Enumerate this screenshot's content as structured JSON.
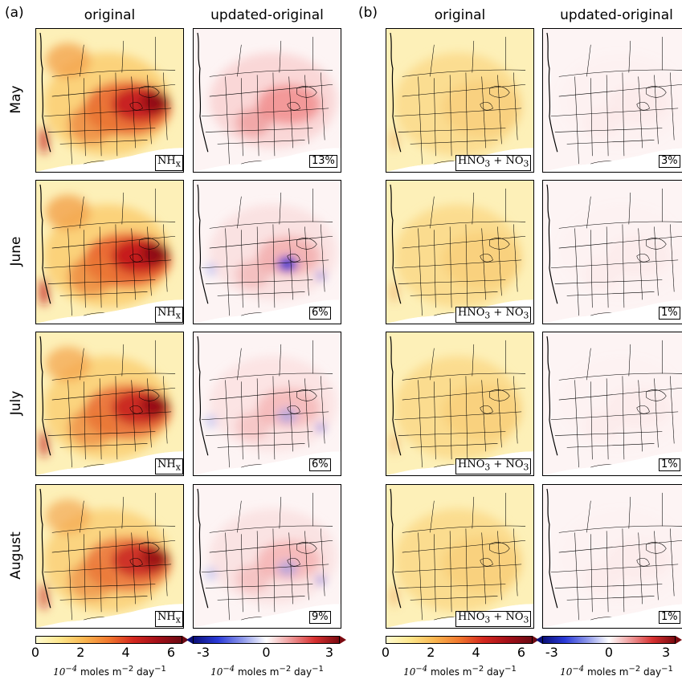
{
  "chart_data": [
    {
      "type": "heatmap",
      "panel": "(a)",
      "species": "NH",
      "species_sub": "x",
      "column_titles": [
        "original",
        "updated-original"
      ],
      "rows": [
        "May",
        "June",
        "July",
        "August"
      ],
      "percent_changes": [
        "13%",
        "6%",
        "6%",
        "9%"
      ],
      "original_colorbar": {
        "ticks": [
          "0",
          "2",
          "4",
          "6"
        ],
        "range": [
          0,
          6.5
        ],
        "colormap": "yellow-orange-red",
        "extend": "max"
      },
      "difference_colorbar": {
        "ticks": [
          "-3",
          "0",
          "3"
        ],
        "range": [
          -3.5,
          3.5
        ],
        "colormap": "blue-white-red",
        "extend": "both"
      },
      "units": {
        "base": "10",
        "exp": "−4",
        "text": "moles m",
        "exp2": "−2",
        "text2": "day",
        "exp3": "−1"
      },
      "intensity": {
        "original": [
          0.95,
          1.0,
          0.88,
          0.8
        ],
        "difference": [
          0.55,
          0.35,
          0.3,
          0.32
        ]
      },
      "negative_anomalies": [
        false,
        true,
        true,
        true
      ]
    },
    {
      "type": "heatmap",
      "panel": "(b)",
      "species": "HNO",
      "species_sub": "3",
      "species2": "NO",
      "species2_sub": "3",
      "column_titles": [
        "original",
        "updated-original"
      ],
      "rows": [
        "May",
        "June",
        "July",
        "August"
      ],
      "percent_changes": [
        "3%",
        "1%",
        "1%",
        "1%"
      ],
      "original_colorbar": {
        "ticks": [
          "0",
          "2",
          "4",
          "6"
        ],
        "range": [
          0,
          6.5
        ],
        "colormap": "yellow-orange-red",
        "extend": "max"
      },
      "difference_colorbar": {
        "ticks": [
          "-3",
          "0",
          "3"
        ],
        "range": [
          -3.5,
          3.5
        ],
        "colormap": "blue-white-red",
        "extend": "both"
      },
      "units": {
        "base": "10",
        "exp": "−4",
        "text": "moles m",
        "exp2": "−2",
        "text2": "day",
        "exp3": "−1"
      },
      "intensity": {
        "original": [
          0.28,
          0.3,
          0.3,
          0.3
        ],
        "difference": [
          0.05,
          0.04,
          0.04,
          0.04
        ]
      },
      "negative_anomalies": [
        false,
        false,
        false,
        false
      ]
    }
  ]
}
